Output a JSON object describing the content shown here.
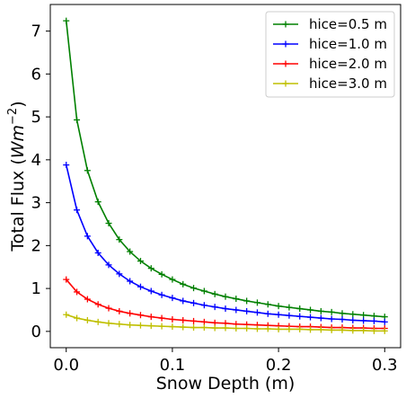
{
  "chart_data": {
    "type": "line",
    "xlabel": "Snow Depth (m)",
    "ylabel_prefix": "Total Flux (",
    "ylabel_unit_base": "Wm",
    "ylabel_unit_exp": "−2",
    "ylabel_suffix": ")",
    "xlim": [
      -0.015,
      0.315
    ],
    "ylim": [
      -0.38,
      7.62
    ],
    "x_ticks": [
      0.0,
      0.1,
      0.2,
      0.3
    ],
    "x_tick_labels": [
      "0.0",
      "0.1",
      "0.2",
      "0.3"
    ],
    "y_ticks": [
      0,
      1,
      2,
      3,
      4,
      5,
      6,
      7
    ],
    "y_tick_labels": [
      "0",
      "1",
      "2",
      "3",
      "4",
      "5",
      "6",
      "7"
    ],
    "grid": false,
    "legend_position": "top-right",
    "x": [
      0.0,
      0.01,
      0.02,
      0.03,
      0.04,
      0.05,
      0.06,
      0.07,
      0.08,
      0.09,
      0.1,
      0.11,
      0.12,
      0.13,
      0.14,
      0.15,
      0.16,
      0.17,
      0.18,
      0.19,
      0.2,
      0.21,
      0.22,
      0.23,
      0.24,
      0.25,
      0.26,
      0.27,
      0.28,
      0.29,
      0.3
    ],
    "series": [
      {
        "name": "hice=0.5 m",
        "color": "#008000",
        "values": [
          7.24,
          4.93,
          3.75,
          3.02,
          2.52,
          2.14,
          1.86,
          1.64,
          1.47,
          1.33,
          1.21,
          1.1,
          1.01,
          0.94,
          0.87,
          0.81,
          0.76,
          0.71,
          0.67,
          0.63,
          0.59,
          0.56,
          0.53,
          0.5,
          0.47,
          0.45,
          0.42,
          0.4,
          0.38,
          0.36,
          0.34
        ]
      },
      {
        "name": "hice=1.0 m",
        "color": "#0000ff",
        "values": [
          3.88,
          2.83,
          2.22,
          1.83,
          1.55,
          1.34,
          1.17,
          1.04,
          0.94,
          0.85,
          0.78,
          0.71,
          0.66,
          0.61,
          0.57,
          0.53,
          0.5,
          0.47,
          0.44,
          0.41,
          0.39,
          0.37,
          0.35,
          0.33,
          0.31,
          0.29,
          0.28,
          0.26,
          0.25,
          0.24,
          0.22
        ]
      },
      {
        "name": "hice=2.0 m",
        "color": "#ff0000",
        "values": [
          1.21,
          0.92,
          0.75,
          0.63,
          0.54,
          0.47,
          0.42,
          0.38,
          0.34,
          0.31,
          0.28,
          0.26,
          0.24,
          0.22,
          0.2,
          0.19,
          0.17,
          0.16,
          0.15,
          0.14,
          0.13,
          0.12,
          0.11,
          0.11,
          0.1,
          0.09,
          0.09,
          0.08,
          0.08,
          0.07,
          0.07
        ]
      },
      {
        "name": "hice=3.0 m",
        "color": "#bfbf00",
        "values": [
          0.39,
          0.31,
          0.26,
          0.22,
          0.19,
          0.17,
          0.15,
          0.14,
          0.13,
          0.12,
          0.11,
          0.1,
          0.09,
          0.09,
          0.08,
          0.08,
          0.07,
          0.07,
          0.06,
          0.06,
          0.05,
          0.05,
          0.05,
          0.04,
          0.04,
          0.03,
          0.03,
          0.02,
          0.02,
          0.01,
          0.01
        ]
      }
    ]
  }
}
